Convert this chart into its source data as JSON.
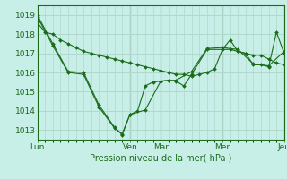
{
  "background_color": "#c8eee8",
  "grid_color": "#b0d8cc",
  "line_color": "#1a6b1a",
  "x_ticks_labels": [
    "Lun",
    "Ven",
    "Mar",
    "Mer",
    "Jeu"
  ],
  "x_ticks_pos": [
    0,
    36,
    48,
    72,
    96
  ],
  "xlabel": "Pression niveau de la mer( hPa )",
  "ylim": [
    1012.5,
    1019.5
  ],
  "yticks": [
    1013,
    1014,
    1015,
    1016,
    1017,
    1018,
    1019
  ],
  "total_hours": 96,
  "series1_x": [
    0,
    3,
    6,
    9,
    12,
    15,
    18,
    21,
    24,
    27,
    30,
    33,
    36,
    39,
    42,
    45,
    48,
    51,
    54,
    57,
    60,
    63,
    66,
    69,
    72,
    75,
    78,
    81,
    84,
    87,
    90,
    93,
    96
  ],
  "series1_y": [
    1018.6,
    1018.1,
    1018.0,
    1017.7,
    1017.5,
    1017.3,
    1017.1,
    1017.0,
    1016.9,
    1016.8,
    1016.7,
    1016.6,
    1016.5,
    1016.4,
    1016.3,
    1016.2,
    1016.1,
    1016.0,
    1015.9,
    1015.9,
    1015.8,
    1015.9,
    1016.0,
    1016.2,
    1017.2,
    1017.2,
    1017.1,
    1017.0,
    1016.9,
    1016.9,
    1016.7,
    1016.5,
    1016.4
  ],
  "series2_x": [
    0,
    6,
    12,
    18,
    24,
    30,
    33,
    36,
    39,
    42,
    45,
    48,
    51,
    54,
    57,
    60,
    66,
    72,
    75,
    78,
    81,
    84,
    87,
    90,
    93,
    96
  ],
  "series2_y": [
    1018.9,
    1017.4,
    1016.0,
    1015.9,
    1014.2,
    1013.1,
    1012.8,
    1013.8,
    1014.0,
    1015.3,
    1015.5,
    1015.55,
    1015.6,
    1015.55,
    1015.3,
    1015.9,
    1017.2,
    1017.2,
    1017.7,
    1017.1,
    1017.0,
    1016.4,
    1016.4,
    1016.3,
    1018.1,
    1017.0
  ],
  "series3_x": [
    0,
    6,
    12,
    18,
    24,
    30,
    33,
    36,
    42,
    48,
    54,
    60,
    66,
    72,
    78,
    84,
    90,
    96
  ],
  "series3_y": [
    1019.0,
    1017.5,
    1016.05,
    1016.0,
    1014.3,
    1013.15,
    1012.75,
    1013.8,
    1014.05,
    1015.55,
    1015.6,
    1016.05,
    1017.25,
    1017.3,
    1017.2,
    1016.45,
    1016.35,
    1017.1
  ]
}
